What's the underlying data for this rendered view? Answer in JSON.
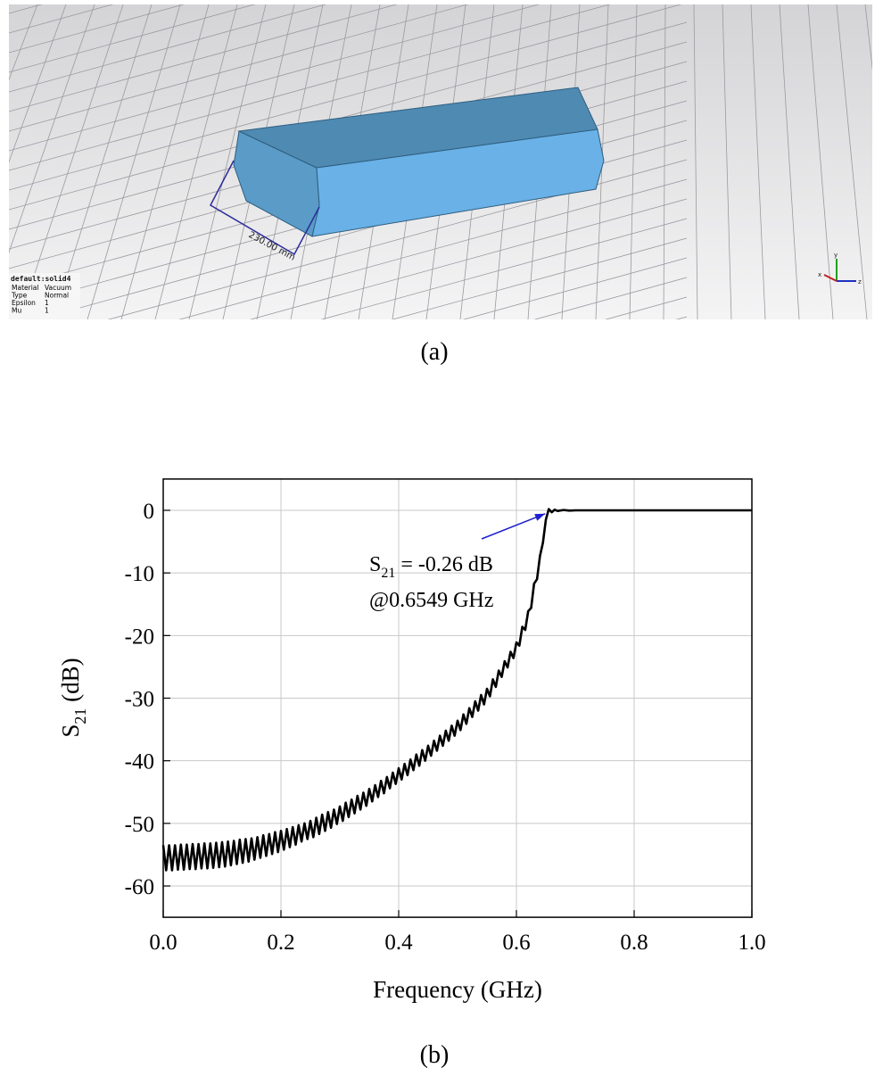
{
  "panel_a": {
    "caption": "(a)",
    "dimension_label": "230.00 mm",
    "info": {
      "title": "default:solid4",
      "rows": [
        [
          "Material",
          "Vacuum"
        ],
        [
          "Type",
          "Normal"
        ],
        [
          "Epsilon",
          "1"
        ],
        [
          "Mu",
          "1"
        ]
      ]
    },
    "axis_labels": [
      "x",
      "y",
      "z"
    ]
  },
  "caption_b": "(b)",
  "chart_data": {
    "type": "line",
    "x_label": "Frequency (GHz)",
    "y_label": {
      "main": "S",
      "sub": "21",
      "rest": " (dB)"
    },
    "annotation": {
      "x": 0.6549,
      "y": -0.26,
      "line1_main": "S",
      "line1_sub": "21",
      "line1_rest": " = -0.26 dB",
      "line2": "@0.6549 GHz",
      "color": "#1f1fd0"
    },
    "color": "#000000",
    "grid": true,
    "xlim": [
      0,
      1
    ],
    "xticks": [
      {
        "value": 0,
        "label": "0.0"
      },
      0.2,
      0.4,
      0.6,
      0.8,
      {
        "value": 1,
        "label": "1.0"
      }
    ],
    "ylim": [
      -65,
      5
    ],
    "yticks": [
      -60,
      -50,
      -40,
      -30,
      -20,
      -10,
      0
    ],
    "x": [
      0,
      0.005,
      0.01,
      0.015,
      0.02,
      0.025,
      0.03,
      0.035,
      0.04,
      0.045,
      0.05,
      0.055,
      0.06,
      0.065,
      0.07,
      0.075,
      0.08,
      0.085,
      0.09,
      0.095,
      0.1,
      0.105,
      0.11,
      0.115,
      0.12,
      0.125,
      0.13,
      0.135,
      0.14,
      0.145,
      0.15,
      0.155,
      0.16,
      0.165,
      0.17,
      0.175,
      0.18,
      0.185,
      0.19,
      0.195,
      0.2,
      0.205,
      0.21,
      0.215,
      0.22,
      0.225,
      0.23,
      0.235,
      0.24,
      0.245,
      0.25,
      0.255,
      0.26,
      0.265,
      0.27,
      0.275,
      0.28,
      0.285,
      0.29,
      0.295,
      0.3,
      0.305,
      0.31,
      0.315,
      0.32,
      0.325,
      0.33,
      0.335,
      0.34,
      0.345,
      0.35,
      0.355,
      0.36,
      0.365,
      0.37,
      0.375,
      0.38,
      0.385,
      0.39,
      0.395,
      0.4,
      0.405,
      0.41,
      0.415,
      0.42,
      0.425,
      0.43,
      0.435,
      0.44,
      0.445,
      0.45,
      0.455,
      0.46,
      0.465,
      0.47,
      0.475,
      0.48,
      0.485,
      0.49,
      0.495,
      0.5,
      0.505,
      0.51,
      0.515,
      0.52,
      0.525,
      0.53,
      0.535,
      0.54,
      0.545,
      0.55,
      0.555,
      0.56,
      0.565,
      0.57,
      0.575,
      0.58,
      0.585,
      0.59,
      0.595,
      0.6,
      0.605,
      0.61,
      0.615,
      0.62,
      0.625,
      0.63,
      0.635,
      0.64,
      0.645,
      0.65,
      0.655,
      0.66,
      0.665,
      0.67,
      0.68,
      0.69,
      0.7,
      0.8,
      0.9,
      1.0
    ],
    "values": [
      -53.5,
      -57.5,
      -53.5,
      -57.5,
      -53.5,
      -57.4,
      -53.4,
      -57.4,
      -53.4,
      -57.3,
      -53.3,
      -57.3,
      -53.3,
      -57.2,
      -53.2,
      -57.2,
      -53.2,
      -57.1,
      -53.1,
      -57.0,
      -53.0,
      -56.9,
      -52.9,
      -56.7,
      -52.8,
      -56.5,
      -52.6,
      -56.3,
      -52.5,
      -56.1,
      -52.4,
      -55.8,
      -52.2,
      -55.5,
      -51.9,
      -55.2,
      -51.7,
      -54.9,
      -51.4,
      -54.6,
      -51.2,
      -54.2,
      -50.9,
      -53.8,
      -50.6,
      -53.4,
      -50.3,
      -52.9,
      -50.0,
      -52.5,
      -49.6,
      -52.2,
      -49.1,
      -51.7,
      -48.6,
      -51.2,
      -48.2,
      -50.7,
      -47.8,
      -50.1,
      -47.3,
      -49.6,
      -46.7,
      -49.0,
      -46.2,
      -48.4,
      -45.6,
      -47.8,
      -45.1,
      -47.2,
      -44.5,
      -46.5,
      -43.9,
      -45.8,
      -43.2,
      -45.2,
      -42.6,
      -44.4,
      -41.9,
      -43.7,
      -41.2,
      -43.0,
      -40.5,
      -42.3,
      -39.8,
      -41.5,
      -39.0,
      -40.8,
      -38.3,
      -40.0,
      -37.6,
      -39.2,
      -36.8,
      -38.4,
      -36.0,
      -37.6,
      -35.2,
      -36.8,
      -34.4,
      -36.0,
      -33.6,
      -35.1,
      -32.6,
      -34.1,
      -31.6,
      -33.0,
      -30.5,
      -32.0,
      -29.5,
      -31.0,
      -28.5,
      -29.7,
      -27.0,
      -28.2,
      -25.6,
      -26.6,
      -24.1,
      -25.1,
      -22.6,
      -23.6,
      -21.1,
      -21.6,
      -18.6,
      -19.1,
      -16.1,
      -15.6,
      -11.7,
      -11.0,
      -7.3,
      -5.2,
      -1.5,
      0.2,
      -0.3,
      0.1,
      -0.1,
      0.05,
      -0.05,
      0,
      0,
      0,
      0
    ]
  }
}
